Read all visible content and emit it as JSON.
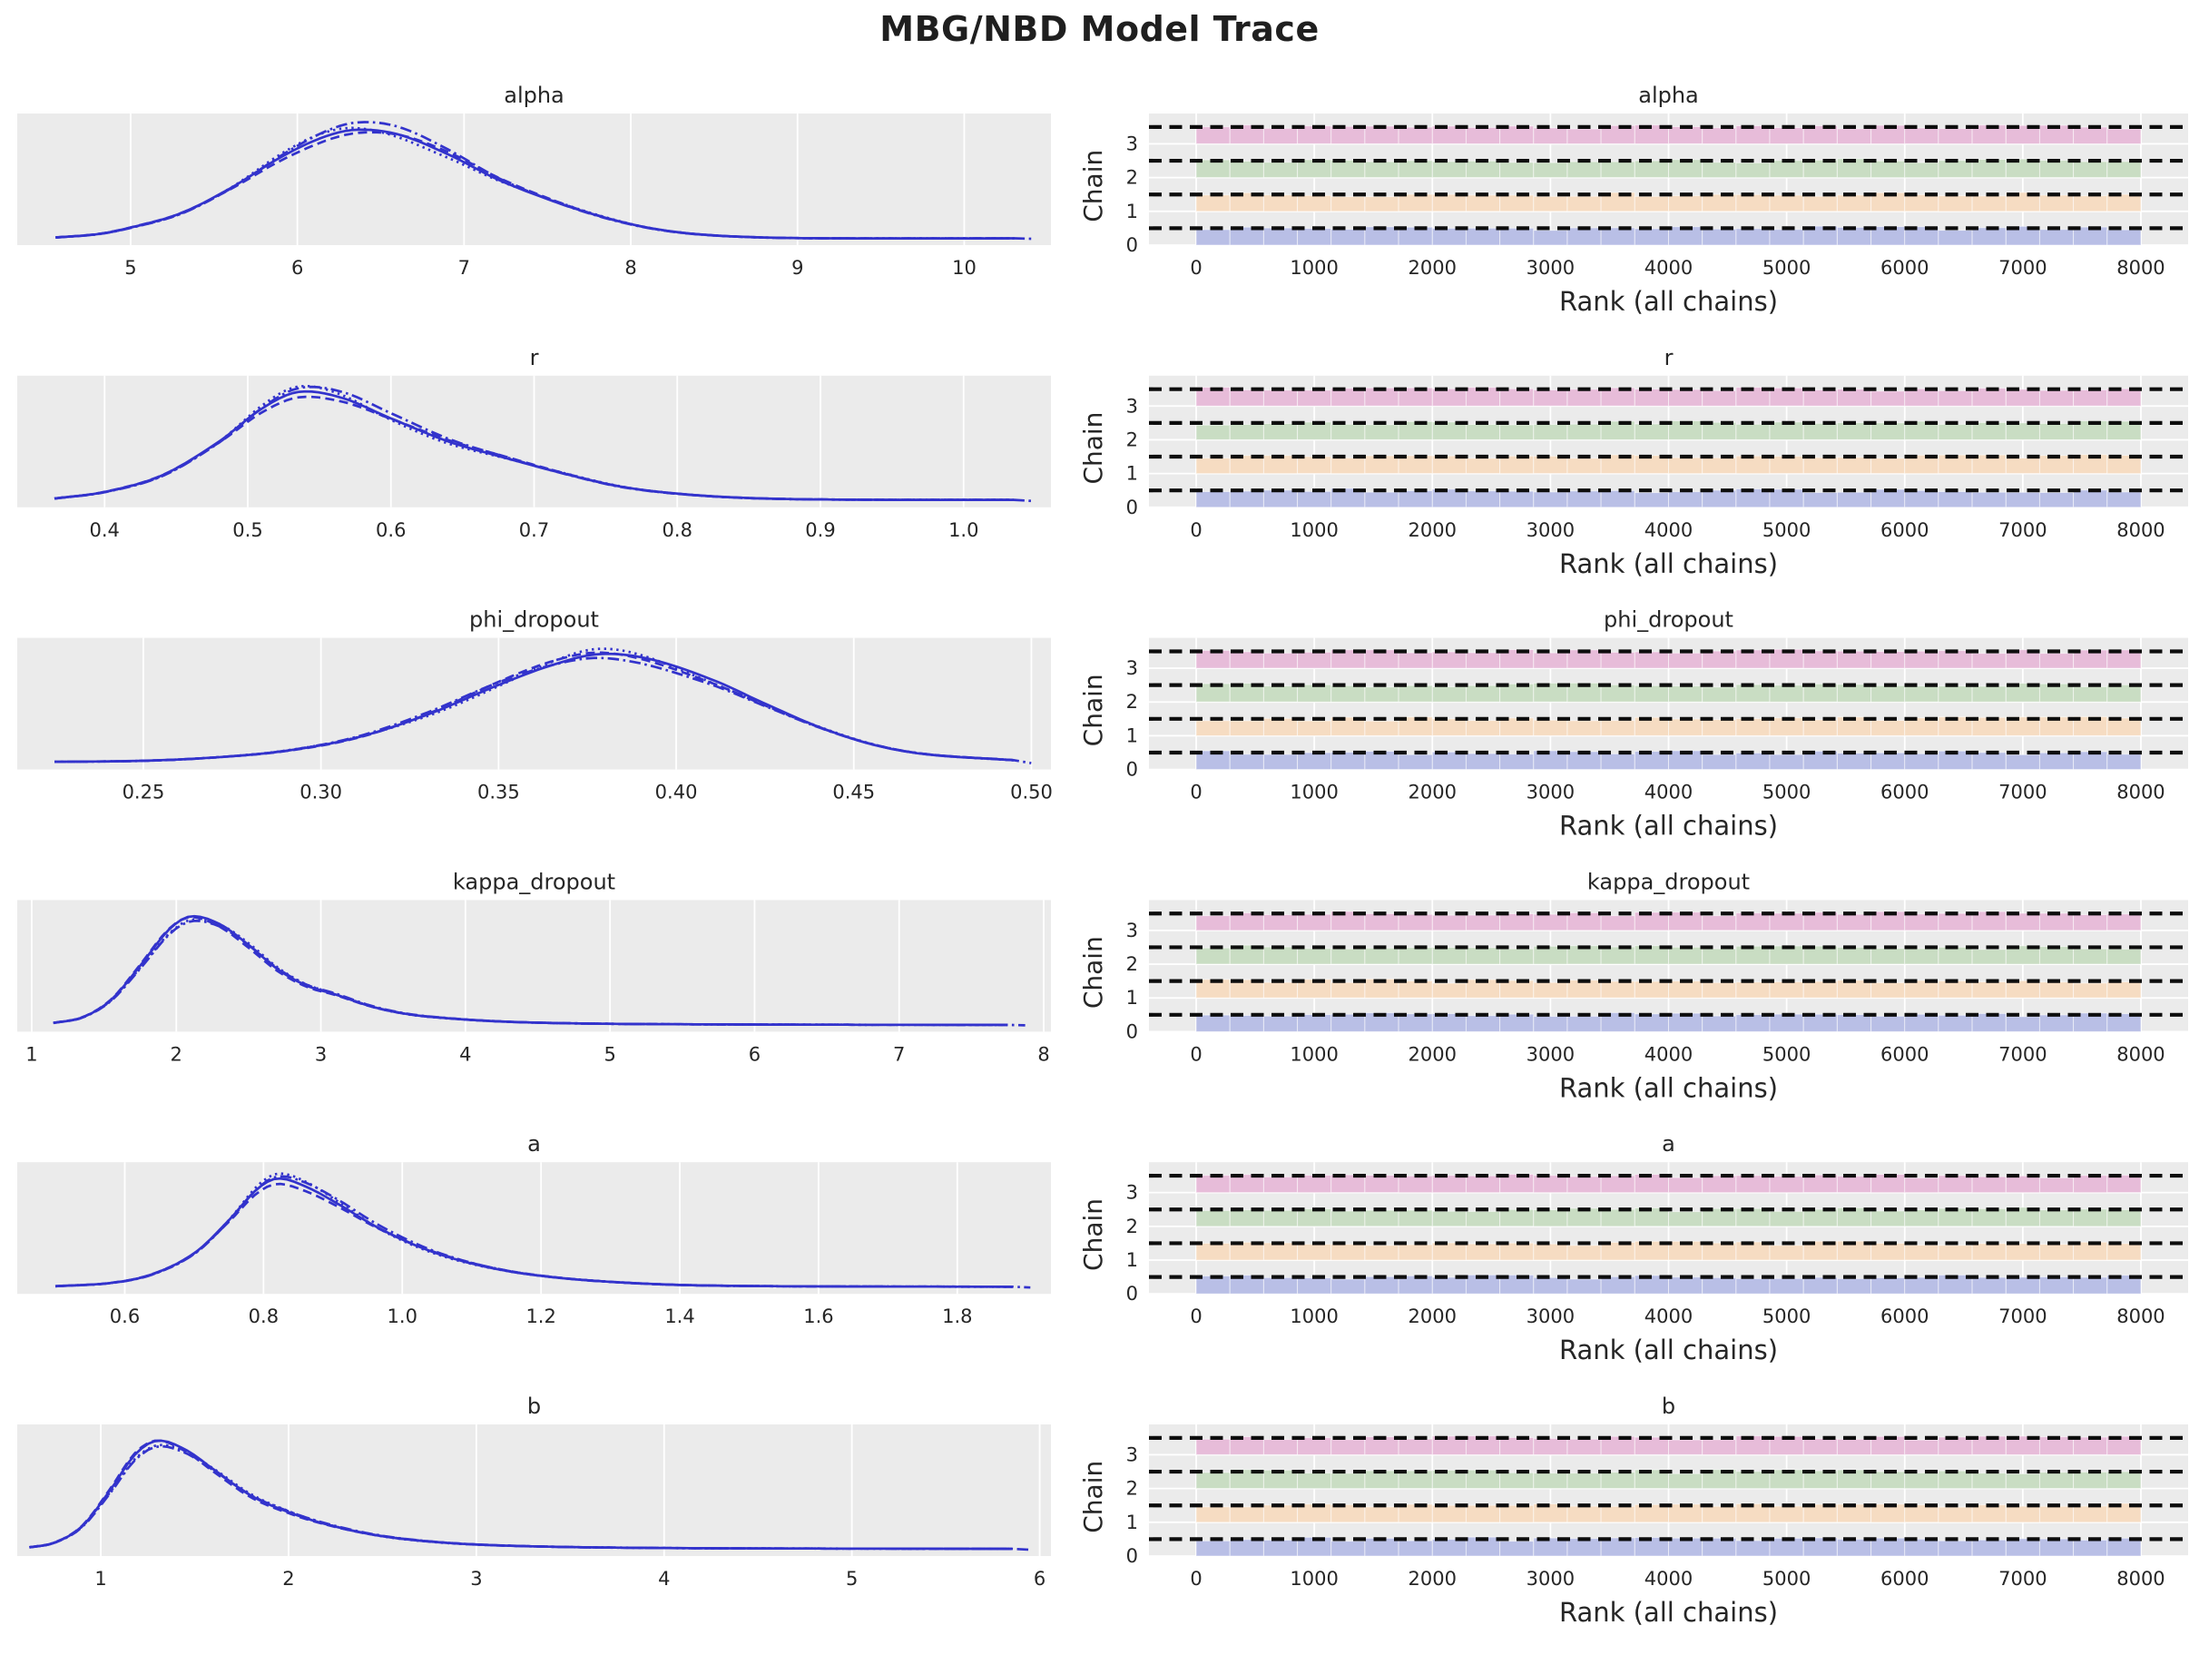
{
  "figure": {
    "title": "MBG/NBD Model Trace"
  },
  "style": {
    "axes_bg": "#ebebeb",
    "grid_color": "#ffffff",
    "kde_line_color": "#3333cc",
    "text_color": "#262626",
    "dashed_line_color": "#0d0d0d",
    "chain_colors": [
      "#b9bfe6",
      "#f6dcc2",
      "#c9ddc3",
      "#e7bcd9"
    ]
  },
  "rank_common": {
    "xlabel": "Rank (all chains)",
    "ylabel": "Chain",
    "xticks": [
      0,
      1000,
      2000,
      3000,
      4000,
      5000,
      6000,
      7000,
      8000
    ],
    "xtick_labels": [
      "0",
      "1000",
      "2000",
      "3000",
      "4000",
      "5000",
      "6000",
      "7000",
      "8000"
    ],
    "yticks": [
      0,
      1,
      2,
      3
    ],
    "ytick_labels": [
      "0",
      "1",
      "2",
      "3"
    ],
    "x_range": [
      -400,
      8400
    ],
    "y_range": [
      0,
      3.9
    ],
    "bar_span": [
      0,
      8000
    ],
    "n_bins": 28,
    "n_chains": 4,
    "expected_uniform_level": 0.5
  },
  "kde_common": {
    "n_chains": 4,
    "linestyles": [
      "solid",
      "dashed",
      "dotted",
      "dashdot"
    ]
  },
  "chart_data": [
    {
      "parameter": "alpha",
      "type": "kde+rank-histogram",
      "kde": {
        "x_range": [
          4.32,
          10.52
        ],
        "xticks": [
          5,
          6,
          7,
          8,
          9,
          10
        ],
        "xtick_labels": [
          "5",
          "6",
          "7",
          "8",
          "9",
          "10"
        ],
        "x": [
          4.55,
          4.8,
          5.0,
          5.3,
          5.6,
          5.9,
          6.15,
          6.35,
          6.6,
          6.9,
          7.2,
          7.5,
          7.8,
          8.1,
          8.4,
          8.8,
          9.3,
          10.3
        ],
        "density": [
          0.02,
          0.05,
          0.11,
          0.24,
          0.47,
          0.75,
          0.93,
          1.0,
          0.96,
          0.78,
          0.55,
          0.37,
          0.22,
          0.11,
          0.05,
          0.02,
          0.012,
          0.012
        ]
      }
    },
    {
      "parameter": "r",
      "type": "kde+rank-histogram",
      "kde": {
        "x_range": [
          0.339,
          1.061
        ],
        "xticks": [
          0.4,
          0.5,
          0.6,
          0.7,
          0.8,
          0.9,
          1.0
        ],
        "xtick_labels": [
          "0.4",
          "0.5",
          "0.6",
          "0.7",
          "0.8",
          "0.9",
          "1.0"
        ],
        "x": [
          0.365,
          0.4,
          0.44,
          0.48,
          0.51,
          0.535,
          0.565,
          0.6,
          0.64,
          0.68,
          0.72,
          0.76,
          0.8,
          0.85,
          0.92,
          1.035
        ],
        "density": [
          0.03,
          0.09,
          0.24,
          0.55,
          0.85,
          1.0,
          0.95,
          0.76,
          0.55,
          0.4,
          0.26,
          0.14,
          0.075,
          0.035,
          0.02,
          0.018
        ]
      }
    },
    {
      "parameter": "phi_dropout",
      "type": "kde+rank-histogram",
      "kde": {
        "x_range": [
          0.2145,
          0.5055
        ],
        "xticks": [
          0.25,
          0.3,
          0.35,
          0.4,
          0.45,
          0.5
        ],
        "xtick_labels": [
          "0.25",
          "0.30",
          "0.35",
          "0.40",
          "0.45",
          "0.50"
        ],
        "x": [
          0.225,
          0.25,
          0.27,
          0.29,
          0.31,
          0.33,
          0.35,
          0.365,
          0.378,
          0.392,
          0.41,
          0.425,
          0.44,
          0.455,
          0.47,
          0.495
        ],
        "density": [
          0.02,
          0.03,
          0.06,
          0.12,
          0.24,
          0.45,
          0.72,
          0.9,
          1.0,
          0.96,
          0.77,
          0.55,
          0.34,
          0.18,
          0.09,
          0.035
        ]
      }
    },
    {
      "parameter": "kappa_dropout",
      "type": "kde+rank-histogram",
      "kde": {
        "x_range": [
          0.9,
          8.05
        ],
        "xticks": [
          1,
          2,
          3,
          4,
          5,
          6,
          7,
          8
        ],
        "xtick_labels": [
          "1",
          "2",
          "3",
          "4",
          "5",
          "6",
          "7",
          "8"
        ],
        "x": [
          1.15,
          1.35,
          1.55,
          1.75,
          1.95,
          2.1,
          2.3,
          2.5,
          2.7,
          2.9,
          3.1,
          3.35,
          3.6,
          3.9,
          4.3,
          4.8,
          5.5,
          6.5,
          7.75
        ],
        "density": [
          0.03,
          0.08,
          0.24,
          0.55,
          0.88,
          1.0,
          0.93,
          0.74,
          0.52,
          0.37,
          0.29,
          0.18,
          0.11,
          0.07,
          0.04,
          0.025,
          0.018,
          0.014,
          0.012
        ]
      }
    },
    {
      "parameter": "a",
      "type": "kde+rank-histogram",
      "kde": {
        "x_range": [
          0.445,
          1.935
        ],
        "xticks": [
          0.6,
          0.8,
          1.0,
          1.2,
          1.4,
          1.6,
          1.8
        ],
        "xtick_labels": [
          "0.6",
          "0.8",
          "1.0",
          "1.2",
          "1.4",
          "1.6",
          "1.8"
        ],
        "x": [
          0.5,
          0.58,
          0.64,
          0.7,
          0.75,
          0.79,
          0.82,
          0.86,
          0.91,
          0.96,
          1.02,
          1.08,
          1.15,
          1.22,
          1.3,
          1.4,
          1.55,
          1.88
        ],
        "density": [
          0.02,
          0.05,
          0.13,
          0.32,
          0.62,
          0.9,
          1.0,
          0.93,
          0.76,
          0.57,
          0.39,
          0.26,
          0.16,
          0.1,
          0.06,
          0.032,
          0.02,
          0.015
        ]
      }
    },
    {
      "parameter": "b",
      "type": "kde+rank-histogram",
      "kde": {
        "x_range": [
          0.555,
          6.06
        ],
        "xticks": [
          1,
          2,
          3,
          4,
          5,
          6
        ],
        "xtick_labels": [
          "1",
          "2",
          "3",
          "4",
          "5",
          "6"
        ],
        "x": [
          0.62,
          0.75,
          0.9,
          1.05,
          1.18,
          1.3,
          1.45,
          1.6,
          1.8,
          2.0,
          2.2,
          2.45,
          2.7,
          3.0,
          3.4,
          3.9,
          4.5,
          5.85
        ],
        "density": [
          0.03,
          0.07,
          0.22,
          0.55,
          0.87,
          1.0,
          0.92,
          0.74,
          0.5,
          0.35,
          0.24,
          0.145,
          0.09,
          0.055,
          0.035,
          0.025,
          0.02,
          0.016
        ]
      }
    }
  ]
}
